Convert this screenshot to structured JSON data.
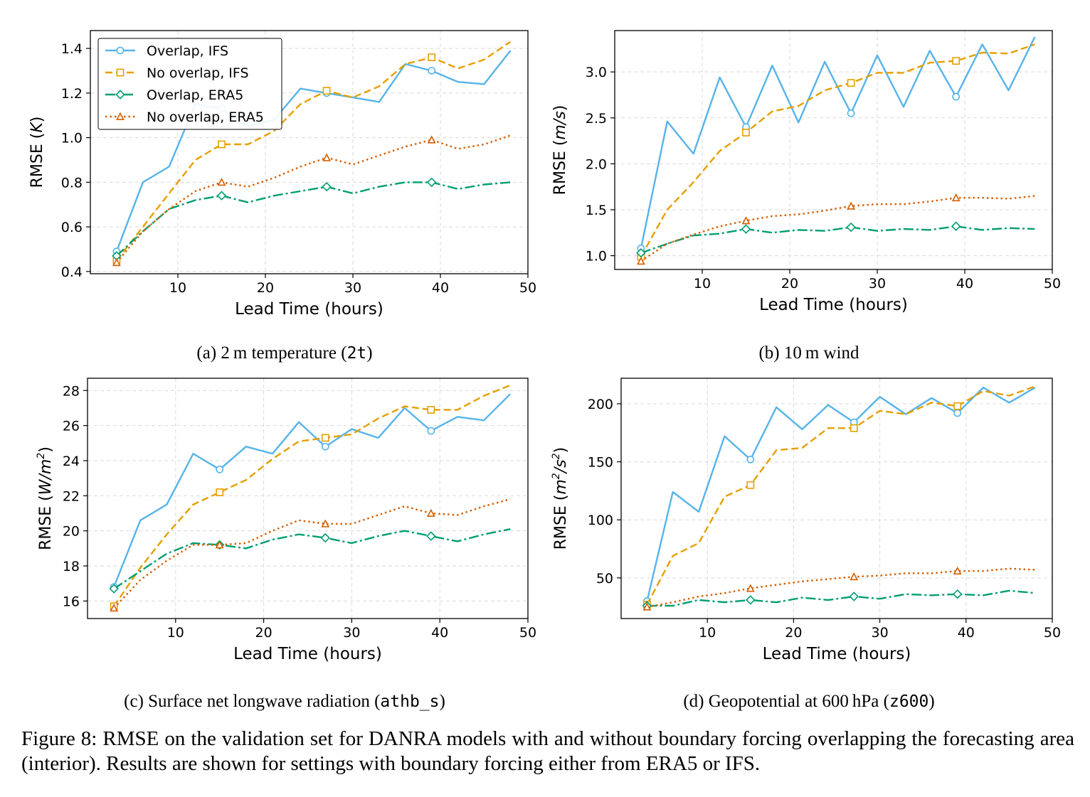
{
  "figure_caption": "Figure 8: RMSE on the validation set for DANRA models with and without boundary forcing overlapping the forecasting area (interior). Results are shown for settings with boundary forcing either from ERA5 or IFS.",
  "colors": {
    "overlap_ifs": "#56b4e9",
    "no_overlap_ifs": "#e69f00",
    "overlap_era5": "#009e73",
    "no_overlap_era5": "#d55e00"
  },
  "legend": {
    "placement": "upper-left of panel (a)",
    "entries": [
      "Overlap, IFS",
      "No overlap, IFS",
      "Overlap, ERA5",
      "No overlap, ERA5"
    ]
  },
  "chart_data": [
    {
      "id": "a",
      "type": "line",
      "caption_prefix": "(a) 2 m temperature (",
      "caption_code": "2t",
      "caption_suffix": ")",
      "xlabel": "Lead Time (hours)",
      "ylabel_prefix": "RMSE (",
      "ylabel_unit": "K",
      "ylabel_suffix": ")",
      "xlim": [
        0,
        50
      ],
      "ylim": [
        0.39,
        1.48
      ],
      "xticks": [
        10,
        20,
        30,
        40,
        50
      ],
      "yticks": [
        0.4,
        0.6,
        0.8,
        1.0,
        1.2,
        1.4
      ],
      "ytick_labels": [
        "0.4",
        "0.6",
        "0.8",
        "1.0",
        "1.2",
        "1.4"
      ],
      "grid": true,
      "x": [
        3,
        6,
        9,
        12,
        15,
        18,
        21,
        24,
        27,
        30,
        33,
        36,
        39,
        42,
        45,
        48
      ],
      "series": [
        {
          "name": "Overlap, IFS",
          "values": [
            0.49,
            0.8,
            0.87,
            1.15,
            1.13,
            1.05,
            1.08,
            1.22,
            1.2,
            1.18,
            1.16,
            1.33,
            1.3,
            1.25,
            1.24,
            1.39
          ]
        },
        {
          "name": "No overlap, IFS",
          "values": [
            0.45,
            0.6,
            0.75,
            0.9,
            0.97,
            0.97,
            1.03,
            1.15,
            1.21,
            1.18,
            1.23,
            1.33,
            1.36,
            1.31,
            1.35,
            1.43
          ]
        },
        {
          "name": "Overlap, ERA5",
          "values": [
            0.47,
            0.58,
            0.68,
            0.72,
            0.74,
            0.71,
            0.74,
            0.76,
            0.78,
            0.75,
            0.78,
            0.8,
            0.8,
            0.77,
            0.79,
            0.8
          ]
        },
        {
          "name": "No overlap, ERA5",
          "values": [
            0.44,
            0.58,
            0.68,
            0.76,
            0.8,
            0.78,
            0.82,
            0.87,
            0.91,
            0.88,
            0.92,
            0.96,
            0.99,
            0.95,
            0.97,
            1.01
          ]
        }
      ]
    },
    {
      "id": "b",
      "type": "line",
      "caption_prefix": "(b) 10 m wind",
      "caption_code": "",
      "caption_suffix": "",
      "xlabel": "Lead Time (hours)",
      "ylabel_prefix": "RMSE (",
      "ylabel_unit": "m/s",
      "ylabel_suffix": ")",
      "xlim": [
        0,
        50
      ],
      "ylim": [
        0.85,
        3.45
      ],
      "xticks": [
        10,
        20,
        30,
        40,
        50
      ],
      "yticks": [
        1.0,
        1.5,
        2.0,
        2.5,
        3.0
      ],
      "ytick_labels": [
        "1.0",
        "1.5",
        "2.0",
        "2.5",
        "3.0"
      ],
      "grid": true,
      "x": [
        3,
        6,
        9,
        12,
        15,
        18,
        21,
        24,
        27,
        30,
        33,
        36,
        39,
        42,
        45,
        48
      ],
      "series": [
        {
          "name": "Overlap, IFS",
          "values": [
            1.08,
            2.46,
            2.11,
            2.94,
            2.4,
            3.07,
            2.45,
            3.11,
            2.55,
            3.18,
            2.62,
            3.23,
            2.73,
            3.3,
            2.8,
            3.38
          ]
        },
        {
          "name": "No overlap, IFS",
          "values": [
            0.99,
            1.5,
            1.8,
            2.14,
            2.34,
            2.57,
            2.63,
            2.8,
            2.88,
            2.99,
            2.99,
            3.1,
            3.12,
            3.21,
            3.2,
            3.3
          ]
        },
        {
          "name": "Overlap, ERA5",
          "values": [
            1.03,
            1.13,
            1.22,
            1.24,
            1.29,
            1.25,
            1.28,
            1.27,
            1.31,
            1.27,
            1.29,
            1.28,
            1.32,
            1.28,
            1.3,
            1.29
          ]
        },
        {
          "name": "No overlap, ERA5",
          "values": [
            0.94,
            1.13,
            1.23,
            1.32,
            1.38,
            1.43,
            1.45,
            1.49,
            1.54,
            1.56,
            1.56,
            1.59,
            1.63,
            1.63,
            1.62,
            1.65
          ]
        }
      ]
    },
    {
      "id": "c",
      "type": "line",
      "caption_prefix": "(c) Surface net longwave radiation (",
      "caption_code": "athb_s",
      "caption_suffix": ")",
      "xlabel": "Lead Time (hours)",
      "ylabel_prefix": "RMSE (",
      "ylabel_unit": "W/m",
      "ylabel_sup": "2",
      "ylabel_suffix": ")",
      "xlim": [
        0,
        50
      ],
      "ylim": [
        15.0,
        28.7
      ],
      "xticks": [
        10,
        20,
        30,
        40,
        50
      ],
      "yticks": [
        16,
        18,
        20,
        22,
        24,
        26,
        28
      ],
      "ytick_labels": [
        "16",
        "18",
        "20",
        "22",
        "24",
        "26",
        "28"
      ],
      "grid": true,
      "x": [
        3,
        6,
        9,
        12,
        15,
        18,
        21,
        24,
        27,
        30,
        33,
        36,
        39,
        42,
        45,
        48
      ],
      "series": [
        {
          "name": "Overlap, IFS",
          "values": [
            16.8,
            20.6,
            21.5,
            24.4,
            23.5,
            24.8,
            24.4,
            26.2,
            24.8,
            25.8,
            25.3,
            27.0,
            25.7,
            26.5,
            26.3,
            27.8
          ]
        },
        {
          "name": "No overlap, IFS",
          "values": [
            15.7,
            17.9,
            19.8,
            21.5,
            22.2,
            22.9,
            24.1,
            25.1,
            25.3,
            25.5,
            26.4,
            27.1,
            26.9,
            26.9,
            27.7,
            28.3
          ]
        },
        {
          "name": "Overlap, ERA5",
          "values": [
            16.7,
            17.7,
            18.7,
            19.3,
            19.2,
            19.0,
            19.5,
            19.8,
            19.6,
            19.3,
            19.7,
            20.0,
            19.7,
            19.4,
            19.8,
            20.1
          ]
        },
        {
          "name": "No overlap, ERA5",
          "values": [
            15.6,
            17.2,
            18.3,
            19.2,
            19.2,
            19.3,
            20.0,
            20.6,
            20.4,
            20.4,
            20.9,
            21.4,
            21.0,
            20.9,
            21.4,
            21.8
          ]
        }
      ]
    },
    {
      "id": "d",
      "type": "line",
      "caption_prefix": "(d) Geopotential at 600 hPa (",
      "caption_code": "z600",
      "caption_suffix": ")",
      "xlabel": "Lead Time (hours)",
      "ylabel_prefix": "RMSE (",
      "ylabel_unit": "m",
      "ylabel_sup": "2",
      "ylabel_mid": "/s",
      "ylabel_sup2": "2",
      "ylabel_suffix": ")",
      "xlim": [
        0,
        50
      ],
      "ylim": [
        15,
        222
      ],
      "xticks": [
        10,
        20,
        30,
        40,
        50
      ],
      "yticks": [
        50,
        100,
        150,
        200
      ],
      "ytick_labels": [
        "50",
        "100",
        "150",
        "200"
      ],
      "grid": true,
      "x": [
        3,
        6,
        9,
        12,
        15,
        18,
        21,
        24,
        27,
        30,
        33,
        36,
        39,
        42,
        45,
        48
      ],
      "series": [
        {
          "name": "Overlap, IFS",
          "values": [
            30,
            124,
            107,
            172,
            152,
            197,
            178,
            199,
            184,
            206,
            191,
            205,
            192,
            214,
            201,
            214
          ]
        },
        {
          "name": "No overlap, IFS",
          "values": [
            27,
            69,
            80,
            120,
            130,
            160,
            162,
            179,
            179,
            194,
            191,
            201,
            198,
            211,
            207,
            215
          ]
        },
        {
          "name": "Overlap, ERA5",
          "values": [
            26,
            26,
            31,
            29,
            31,
            29,
            33,
            31,
            34,
            32,
            36,
            35,
            36,
            35,
            39,
            37
          ]
        },
        {
          "name": "No overlap, ERA5",
          "values": [
            25,
            29,
            34,
            37,
            41,
            44,
            47,
            49,
            51,
            52,
            54,
            54,
            56,
            56,
            58,
            57
          ]
        }
      ]
    }
  ]
}
